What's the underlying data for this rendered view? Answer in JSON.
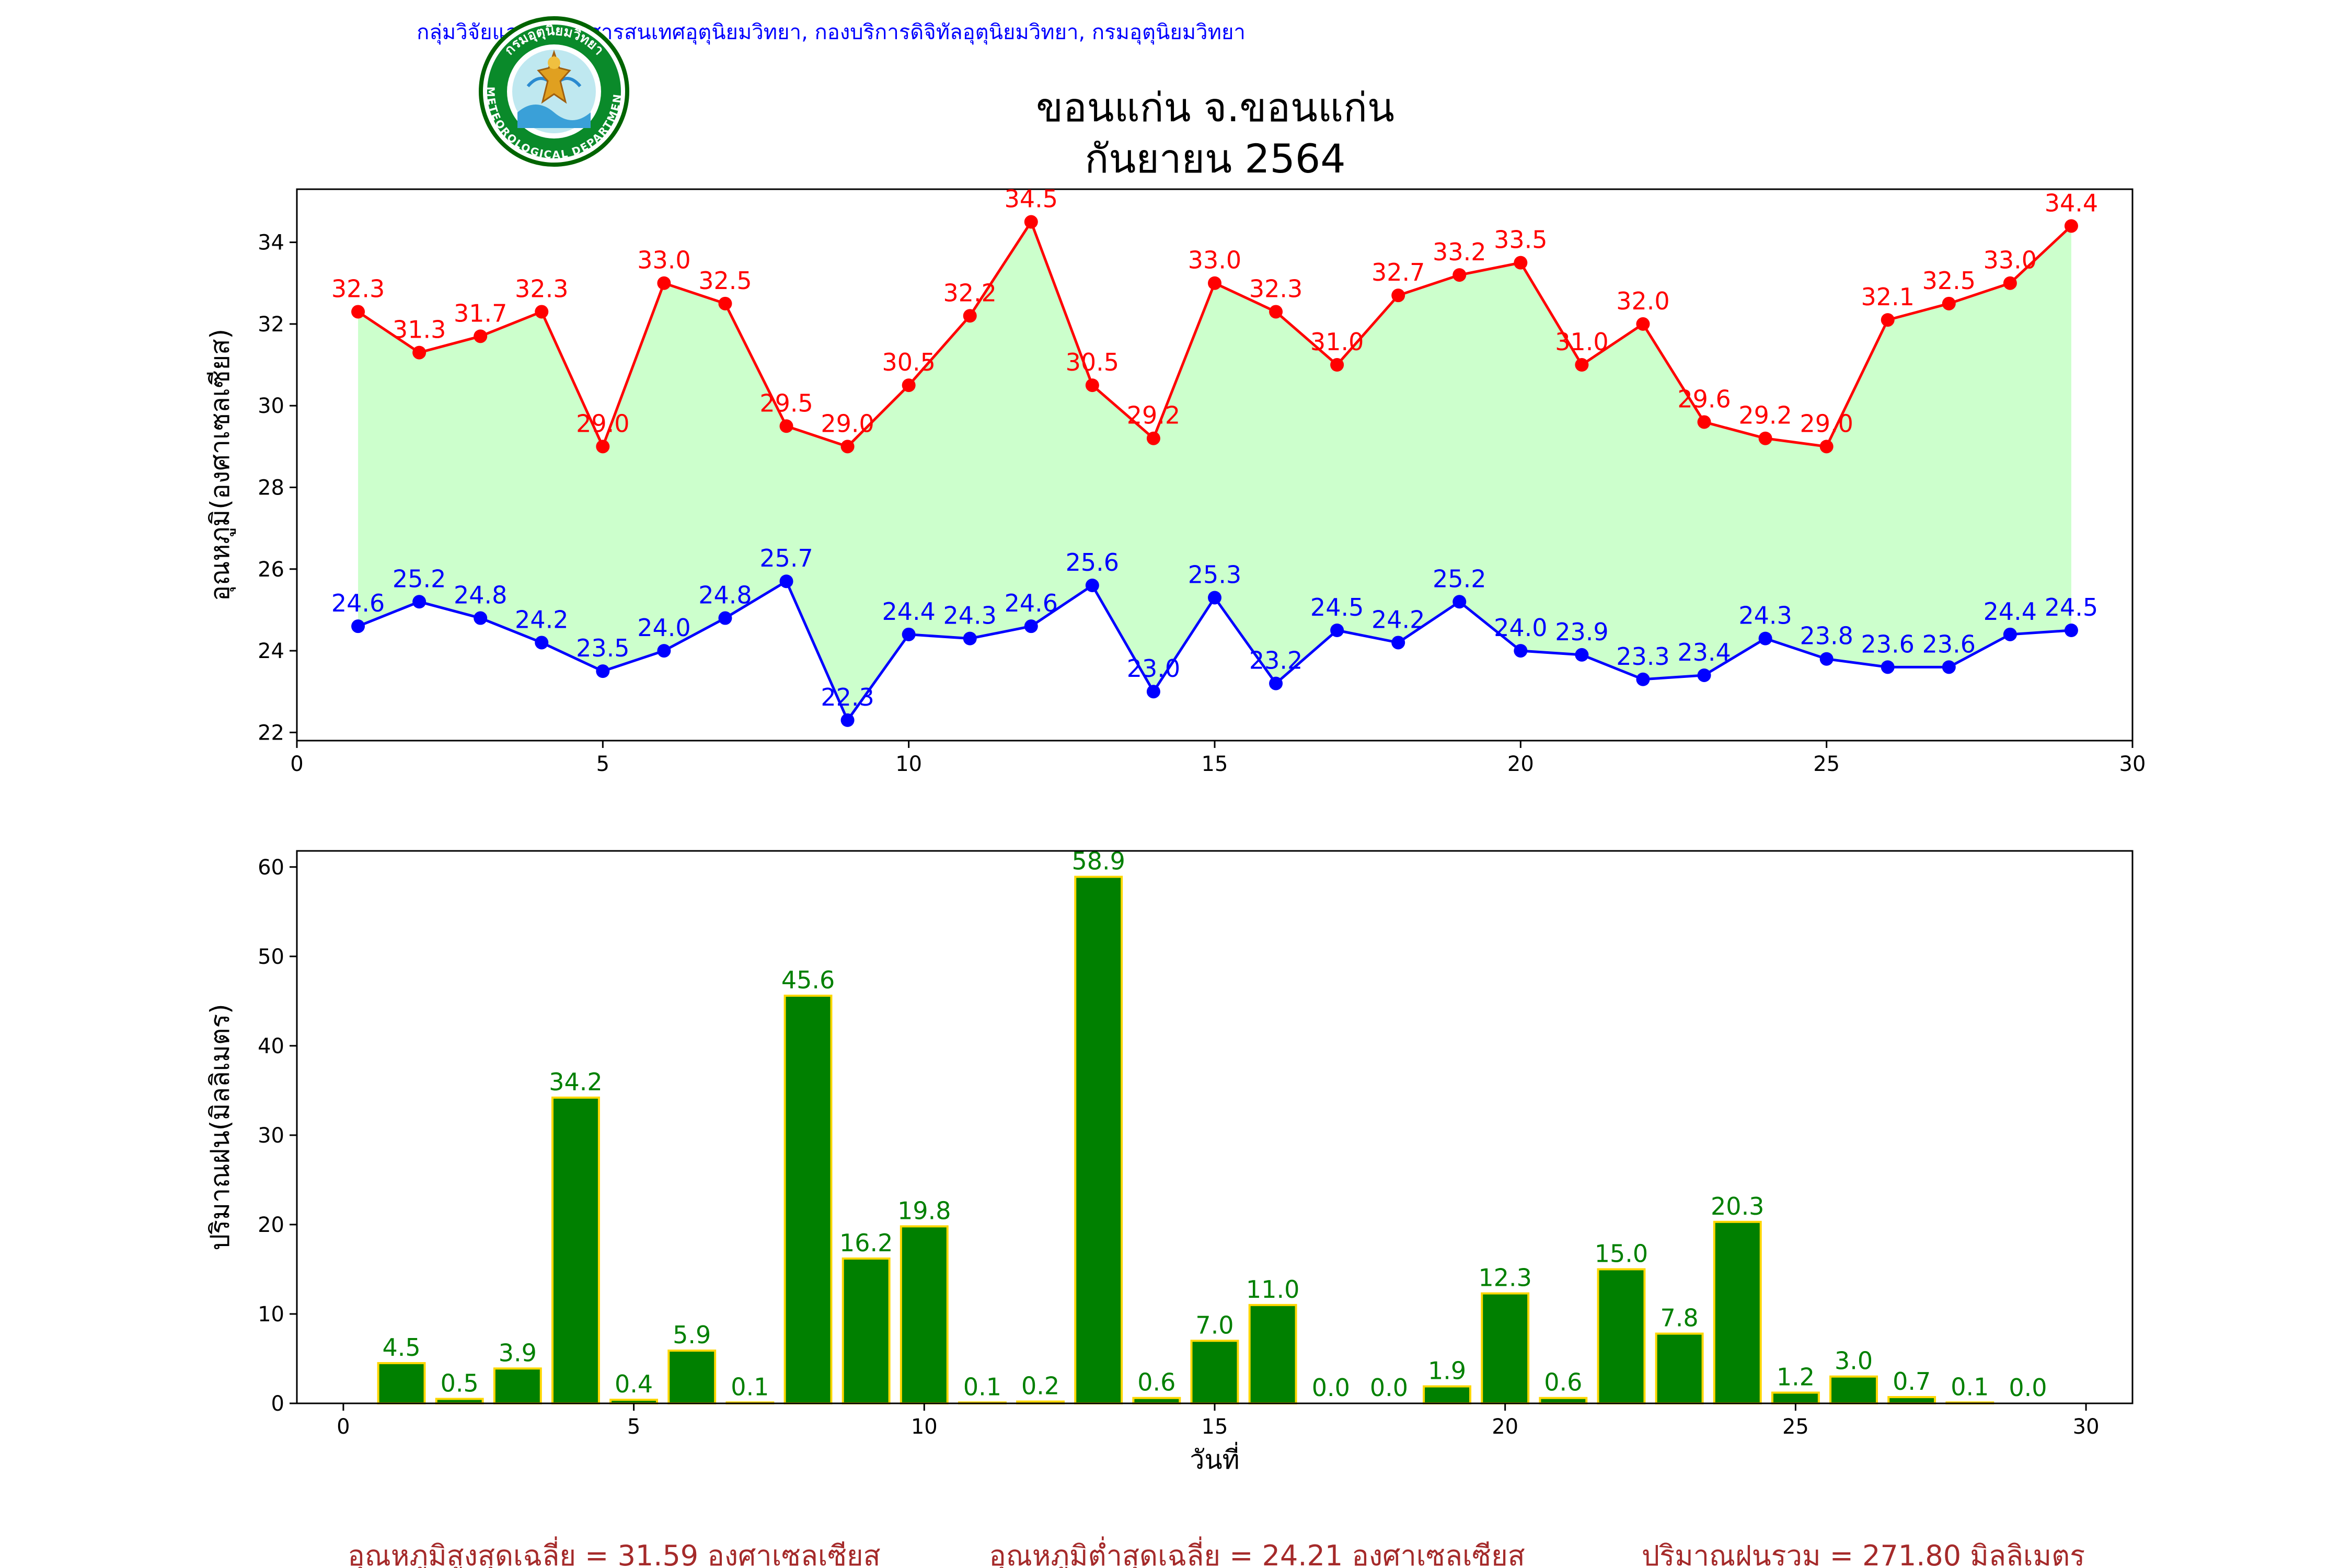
{
  "header": {
    "organization": "กลุ่มวิจัยและพัฒนาสารสนเทศอุตุนิยมวิทยา, กองบริการดิจิทัลอุตุนิยมวิทยา, กรมอุตุนิยมวิทยา",
    "logo_text_top": "กรมอุตุนิยมวิทยา",
    "logo_text_bottom": "METEOROLOGICAL DEPARTMENT",
    "title_line1": "ขอนแก่น จ.ขอนแก่น",
    "title_line2": "กันยายน 2564"
  },
  "colors": {
    "header_text": "#0000ff",
    "title": "#000000",
    "max_line": "#ff0000",
    "min_line": "#0000ff",
    "fill": "#ccffcc",
    "bar_fill": "#008000",
    "bar_edge": "#ffd700",
    "bar_label": "#008000",
    "footer": "#a52a2a"
  },
  "chart_data": [
    {
      "type": "line",
      "ylabel": "อุณหภูมิ(องศาเซลเซียส)",
      "xlabel": "",
      "xlim": [
        0,
        30
      ],
      "ylim": [
        21.8,
        35.3
      ],
      "x_ticks": [
        0,
        5,
        10,
        15,
        20,
        25,
        30
      ],
      "y_ticks": [
        22,
        24,
        26,
        28,
        30,
        32,
        34
      ],
      "grid": false,
      "fill_between": true,
      "x": [
        1,
        2,
        3,
        4,
        5,
        6,
        7,
        8,
        9,
        10,
        11,
        12,
        13,
        14,
        15,
        16,
        17,
        18,
        19,
        20,
        21,
        22,
        23,
        24,
        25,
        26,
        27,
        28,
        29
      ],
      "series": [
        {
          "key": "max",
          "values": [
            32.3,
            31.3,
            31.7,
            32.3,
            29.0,
            33.0,
            32.5,
            29.5,
            29.0,
            30.5,
            32.2,
            34.5,
            30.5,
            29.2,
            33.0,
            32.3,
            31.0,
            32.7,
            33.2,
            33.5,
            31.0,
            32.0,
            29.6,
            29.2,
            29.0,
            32.1,
            32.5,
            33.0,
            34.4
          ]
        },
        {
          "key": "min",
          "values": [
            24.6,
            25.2,
            24.8,
            24.2,
            23.5,
            24.0,
            24.8,
            25.7,
            22.3,
            24.4,
            24.3,
            24.6,
            25.6,
            23.0,
            25.3,
            23.2,
            24.5,
            24.2,
            25.2,
            24.0,
            23.9,
            23.3,
            23.4,
            24.3,
            23.8,
            23.6,
            23.6,
            24.4,
            24.5
          ]
        }
      ]
    },
    {
      "type": "bar",
      "ylabel": "ปริมาณฝน(มิลลิเมตร)",
      "xlabel": "วันที่",
      "xlim": [
        -0.8,
        30.8
      ],
      "ylim": [
        0,
        61.8
      ],
      "x_ticks": [
        0,
        5,
        10,
        15,
        20,
        25,
        30
      ],
      "y_ticks": [
        0,
        10,
        20,
        30,
        40,
        50,
        60
      ],
      "grid": false,
      "x": [
        1,
        2,
        3,
        4,
        5,
        6,
        7,
        8,
        9,
        10,
        11,
        12,
        13,
        14,
        15,
        16,
        17,
        18,
        19,
        20,
        21,
        22,
        23,
        24,
        25,
        26,
        27,
        28,
        29
      ],
      "values": [
        4.5,
        0.5,
        3.9,
        34.2,
        0.4,
        5.9,
        0.1,
        45.6,
        16.2,
        19.8,
        0.1,
        0.2,
        58.9,
        0.6,
        7.0,
        11.0,
        0.0,
        0.0,
        1.9,
        12.3,
        0.6,
        15.0,
        7.8,
        20.3,
        1.2,
        3.0,
        0.7,
        0.1,
        0.0
      ]
    }
  ],
  "footer": {
    "avg_max": "อุณหภูมิสูงสุดเฉลี่ย = 31.59 องศาเซลเซียส",
    "avg_min": "อุณหภูมิต่ำสุดเฉลี่ย = 24.21 องศาเซลเซียส",
    "total_rain": "ปริมาณฝนรวม = 271.80 มิลลิเมตร"
  }
}
